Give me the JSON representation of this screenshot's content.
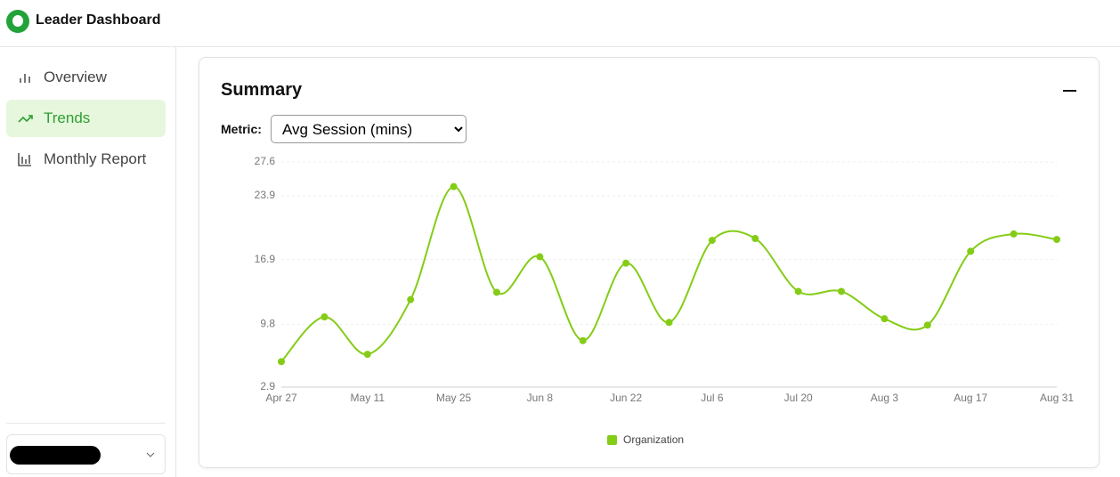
{
  "header": {
    "title": "Leader Dashboard"
  },
  "nav": {
    "items": [
      "Overview",
      "Trends",
      "Monthly Report"
    ]
  },
  "summary": {
    "title": "Summary",
    "metric_label": "Metric:",
    "metric_value": "Avg Session (mins)"
  },
  "chart_data": {
    "type": "line",
    "categories": [
      "Apr 27",
      null,
      "May 11",
      null,
      "May 25",
      null,
      "Jun 8",
      null,
      "Jun 22",
      null,
      "Jul 6",
      null,
      "Jul 20",
      null,
      "Aug 3",
      null,
      "Aug 17",
      null,
      "Aug 31"
    ],
    "series": [
      {
        "name": "Organization",
        "color": "#84cc16",
        "values": [
          5.7,
          10.6,
          6.5,
          12.5,
          24.9,
          13.3,
          17.2,
          8.0,
          16.5,
          10.0,
          19.0,
          19.2,
          13.4,
          13.4,
          10.4,
          9.7,
          17.8,
          19.7,
          19.1
        ]
      }
    ],
    "ylim": [
      2.9,
      27.6
    ],
    "yticks": [
      2.9,
      9.8,
      16.9,
      23.9,
      27.6
    ],
    "grid": true,
    "legend": "bottom"
  }
}
